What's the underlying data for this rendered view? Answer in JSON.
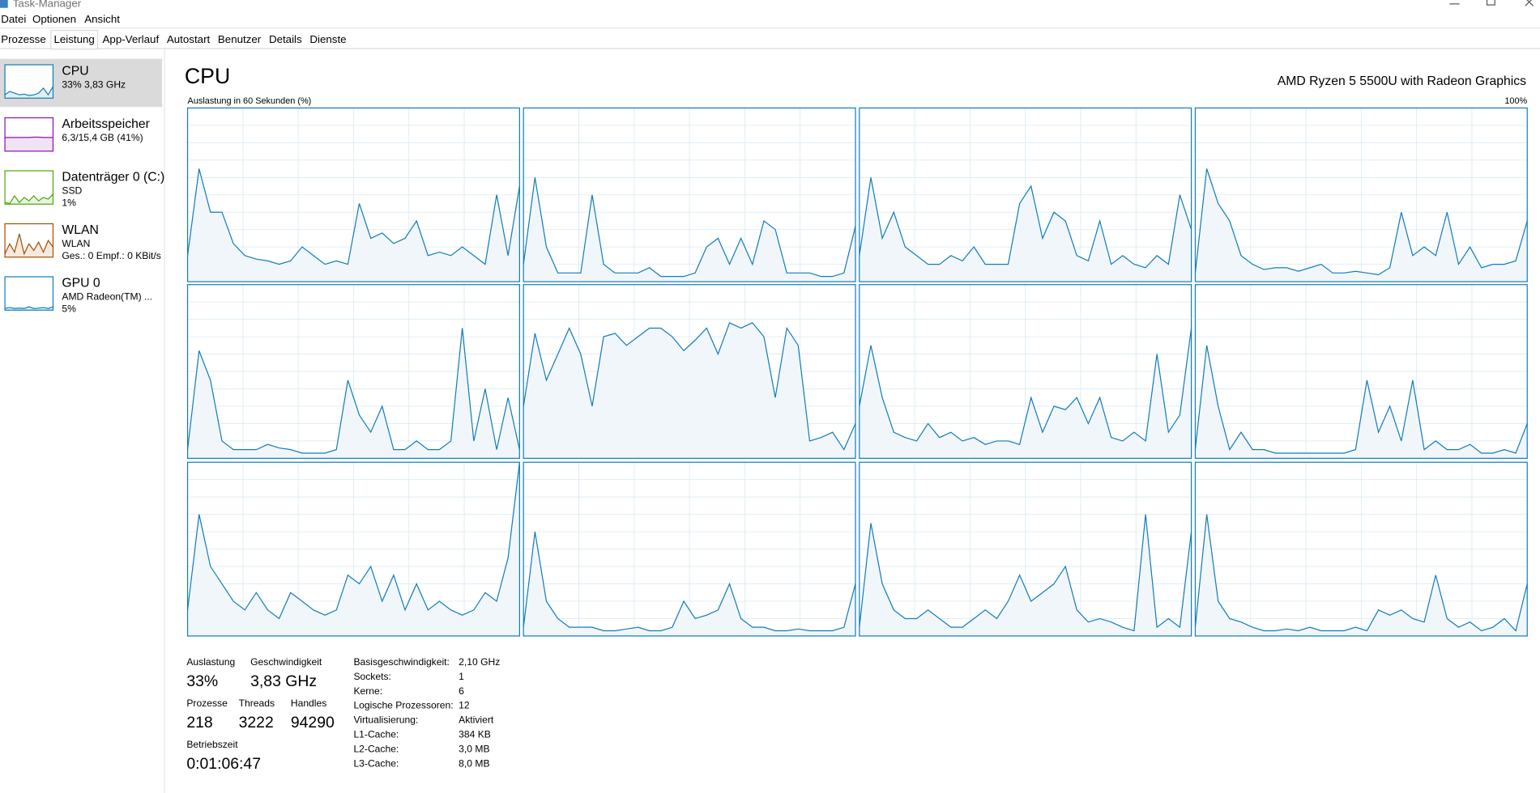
{
  "window": {
    "title": "Task-Manager"
  },
  "menu": [
    "Datei",
    "Optionen",
    "Ansicht"
  ],
  "tabs": [
    "Prozesse",
    "Leistung",
    "App-Verlauf",
    "Autostart",
    "Benutzer",
    "Details",
    "Dienste"
  ],
  "selected_tab": 1,
  "sidebar": [
    {
      "name": "CPU",
      "details": [
        "33% 3,83 GHz"
      ],
      "color": "#117dbb",
      "values": [
        10,
        20,
        15,
        10,
        12,
        8,
        10,
        15,
        30,
        10,
        35
      ]
    },
    {
      "name": "Arbeitsspeicher",
      "details": [
        "6,3/15,4 GB (41%)"
      ],
      "color": "#8b12ae",
      "values": [
        41,
        41,
        41,
        41,
        41,
        41,
        42,
        42,
        41,
        41,
        41
      ]
    },
    {
      "name": "Datenträger 0 (C:)",
      "details": [
        "SSD",
        "1%"
      ],
      "color": "#4da60c",
      "values": [
        5,
        2,
        25,
        5,
        20,
        10,
        25,
        10,
        20,
        15,
        30
      ]
    },
    {
      "name": "WLAN",
      "details": [
        "WLAN",
        "Ges.: 0 Empf.: 0 KBit/s"
      ],
      "color": "#a74f01",
      "values": [
        10,
        40,
        15,
        70,
        10,
        40,
        20,
        45,
        15,
        50,
        30
      ]
    },
    {
      "name": "GPU 0",
      "details": [
        "AMD Radeon(TM) ...",
        "5%"
      ],
      "color": "#117dbb",
      "values": [
        5,
        8,
        5,
        6,
        5,
        10,
        5,
        6,
        8,
        5,
        10
      ]
    }
  ],
  "header": {
    "title": "CPU",
    "processor": "AMD Ryzen 5 5500U with Radeon Graphics",
    "graph_label": "Auslastung in 60 Sekunden (%)",
    "graph_max": "100%"
  },
  "cores": [
    {
      "values": [
        15,
        65,
        40,
        40,
        22,
        15,
        13,
        12,
        10,
        12,
        20,
        15,
        10,
        12,
        10,
        45,
        25,
        28,
        22,
        25,
        35,
        15,
        17,
        15,
        20,
        15,
        10,
        50,
        15,
        55
      ]
    },
    {
      "values": [
        10,
        60,
        20,
        5,
        5,
        5,
        50,
        10,
        5,
        5,
        5,
        8,
        3,
        3,
        3,
        5,
        20,
        25,
        10,
        25,
        10,
        35,
        30,
        5,
        5,
        5,
        3,
        3,
        5,
        32
      ]
    },
    {
      "values": [
        15,
        60,
        25,
        40,
        20,
        15,
        10,
        10,
        15,
        12,
        20,
        10,
        10,
        10,
        45,
        55,
        25,
        40,
        35,
        15,
        12,
        35,
        10,
        15,
        10,
        8,
        15,
        10,
        50,
        30
      ]
    },
    {
      "values": [
        5,
        65,
        45,
        35,
        15,
        10,
        7,
        8,
        8,
        6,
        8,
        10,
        5,
        5,
        6,
        5,
        4,
        8,
        40,
        15,
        20,
        15,
        40,
        10,
        20,
        8,
        10,
        10,
        12,
        35
      ]
    },
    {
      "values": [
        5,
        62,
        45,
        10,
        5,
        5,
        5,
        8,
        6,
        5,
        3,
        3,
        3,
        5,
        45,
        25,
        15,
        30,
        5,
        5,
        10,
        5,
        5,
        10,
        75,
        10,
        40,
        5,
        35,
        5
      ]
    },
    {
      "values": [
        30,
        72,
        45,
        60,
        75,
        60,
        30,
        70,
        72,
        65,
        70,
        75,
        75,
        70,
        62,
        68,
        75,
        60,
        78,
        75,
        78,
        70,
        35,
        75,
        65,
        10,
        12,
        15,
        5,
        20
      ]
    },
    {
      "values": [
        30,
        65,
        35,
        15,
        12,
        10,
        20,
        12,
        15,
        10,
        12,
        8,
        10,
        10,
        8,
        35,
        15,
        30,
        28,
        35,
        20,
        35,
        12,
        10,
        15,
        10,
        60,
        15,
        25,
        75
      ]
    },
    {
      "values": [
        5,
        65,
        30,
        5,
        15,
        5,
        5,
        3,
        3,
        3,
        3,
        3,
        3,
        3,
        5,
        45,
        15,
        30,
        10,
        45,
        5,
        10,
        5,
        5,
        8,
        3,
        3,
        5,
        3,
        20
      ]
    },
    {
      "values": [
        15,
        70,
        40,
        30,
        20,
        15,
        25,
        15,
        10,
        25,
        20,
        15,
        12,
        15,
        35,
        30,
        40,
        20,
        35,
        15,
        30,
        15,
        20,
        15,
        12,
        15,
        25,
        20,
        45,
        100
      ]
    },
    {
      "values": [
        5,
        60,
        20,
        10,
        5,
        5,
        5,
        3,
        3,
        4,
        5,
        3,
        3,
        5,
        20,
        10,
        12,
        15,
        30,
        10,
        5,
        5,
        3,
        3,
        4,
        3,
        3,
        3,
        5,
        30
      ]
    },
    {
      "values": [
        5,
        65,
        30,
        15,
        10,
        10,
        15,
        10,
        5,
        5,
        10,
        15,
        10,
        20,
        35,
        20,
        25,
        30,
        40,
        15,
        8,
        10,
        8,
        5,
        3,
        70,
        5,
        10,
        5,
        60
      ]
    },
    {
      "values": [
        5,
        70,
        20,
        10,
        8,
        5,
        3,
        3,
        4,
        3,
        5,
        3,
        3,
        3,
        5,
        3,
        15,
        12,
        15,
        10,
        8,
        35,
        10,
        5,
        8,
        3,
        5,
        10,
        3,
        30
      ]
    }
  ],
  "core_color": "#117dbb",
  "graph_max_value": 100,
  "stats": [
    {
      "label": "Auslastung",
      "value": "33%"
    },
    {
      "label": "Geschwindigkeit",
      "value": "3,83 GHz"
    },
    {
      "label": "Prozesse",
      "value": "218"
    },
    {
      "label": "Threads",
      "value": "3222"
    },
    {
      "label": "Handles",
      "value": "94290"
    },
    {
      "label": "Betriebszeit",
      "value": "0:01:06:47"
    }
  ],
  "specs": [
    {
      "label": "Basisgeschwindigkeit:",
      "value": "2,10 GHz"
    },
    {
      "label": "Sockets:",
      "value": "1"
    },
    {
      "label": "Kerne:",
      "value": "6"
    },
    {
      "label": "Logische Prozessoren:",
      "value": "12"
    },
    {
      "label": "Virtualisierung:",
      "value": "Aktiviert"
    },
    {
      "label": "L1-Cache:",
      "value": "384 KB"
    },
    {
      "label": "L2-Cache:",
      "value": "3,0 MB"
    },
    {
      "label": "L3-Cache:",
      "value": "8,0 MB"
    }
  ]
}
